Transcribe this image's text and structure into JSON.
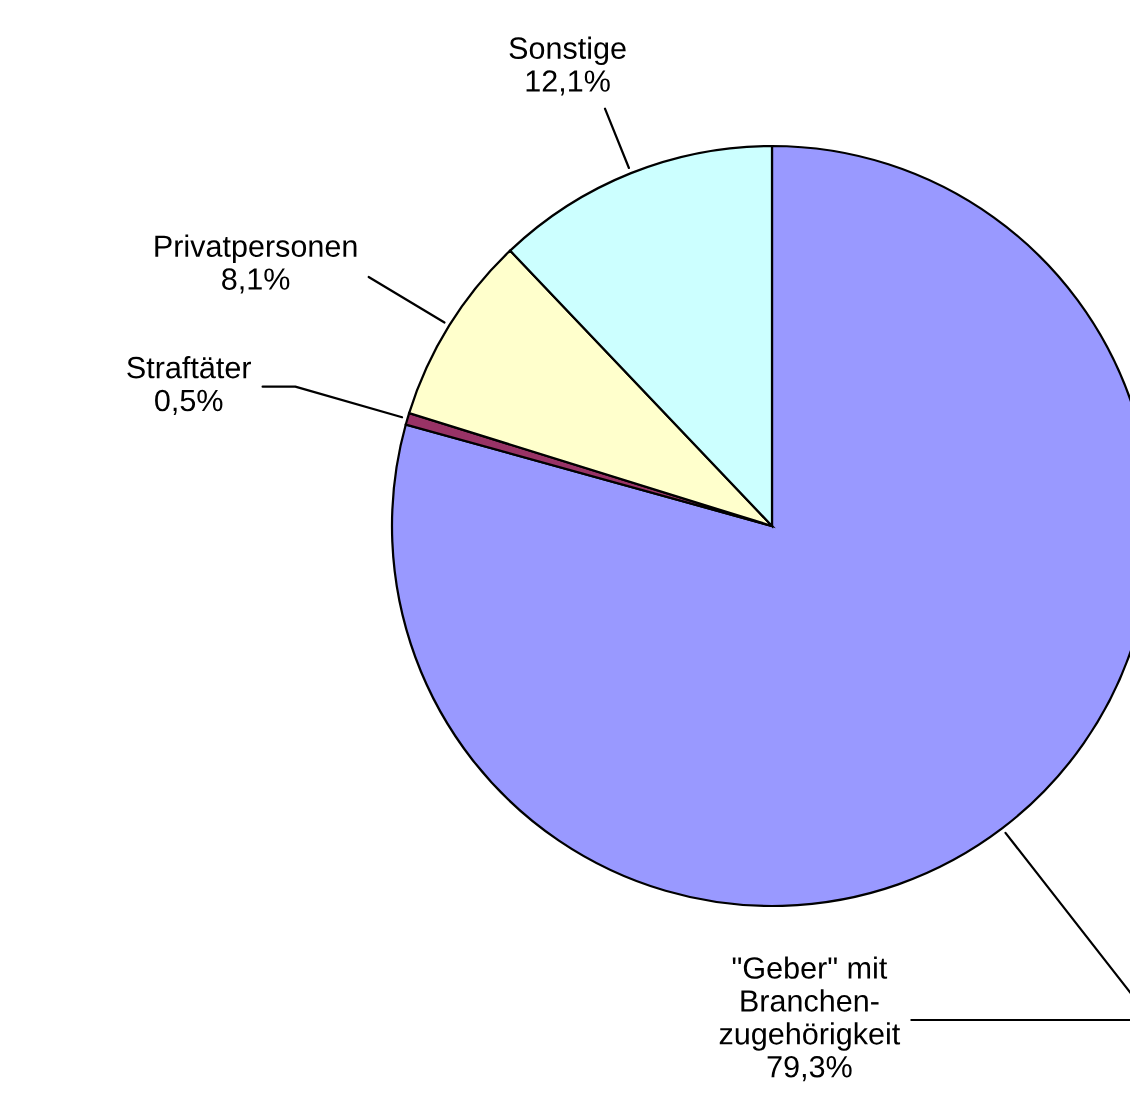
{
  "chart_data": {
    "type": "pie",
    "categories": [
      "\"Geber\" mit\nBranchen-\nzugehörigkeit",
      "Straftäter",
      "Privatpersonen",
      "Sonstige"
    ],
    "values": [
      79.3,
      0.5,
      8.1,
      12.1
    ],
    "value_labels": [
      "79,3%",
      "0,5%",
      "8,1%",
      "12,1%"
    ],
    "colors": [
      "#9999ff",
      "#993366",
      "#ffffcc",
      "#ccffff"
    ],
    "legend": false
  }
}
